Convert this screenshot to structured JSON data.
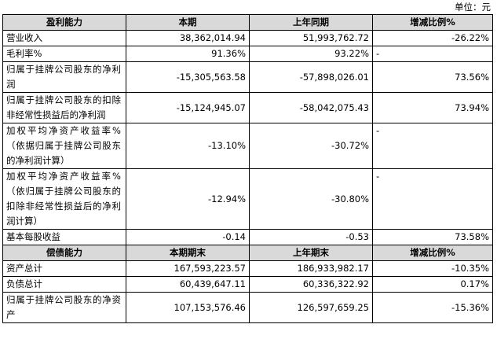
{
  "unit_label": "单位：元",
  "profit_section": {
    "headers": [
      "盈利能力",
      "本期",
      "上年同期",
      "增减比例%"
    ],
    "rows": [
      {
        "label": "营业收入",
        "current": "38,362,014.94",
        "previous": "51,993,762.72",
        "change": "-26.22%"
      },
      {
        "label": "毛利率%",
        "current": "91.36%",
        "previous": "93.22%",
        "change": "-"
      },
      {
        "label": "归属于挂牌公司股东的净利润",
        "current": "-15,305,563.58",
        "previous": "-57,898,026.01",
        "change": "73.56%"
      },
      {
        "label": "归属于挂牌公司股东的扣除非经常性损益后的净利润",
        "current": "-15,124,945.07",
        "previous": "-58,042,075.43",
        "change": "73.94%"
      },
      {
        "label": "加权平均净资产收益率%（依据归属于挂牌公司股东的净利润计算）",
        "current": "-13.10%",
        "previous": "-30.72%",
        "change": "-"
      },
      {
        "label": "加权平均净资产收益率%（依归属于挂牌公司股东的扣除非经常性损益后的净利润计算）",
        "current": "-12.94%",
        "previous": "-30.80%",
        "change": "-"
      },
      {
        "label": "基本每股收益",
        "current": "-0.14",
        "previous": "-0.53",
        "change": "73.58%"
      }
    ]
  },
  "solvency_section": {
    "headers": [
      "偿债能力",
      "本期期末",
      "上年期末",
      "增减比例%"
    ],
    "rows": [
      {
        "label": "资产总计",
        "current": "167,593,223.57",
        "previous": "186,933,982.17",
        "change": "-10.35%"
      },
      {
        "label": "负债总计",
        "current": "60,439,647.11",
        "previous": "60,336,322.92",
        "change": "0.17%"
      },
      {
        "label": "归属于挂牌公司股东的净资产",
        "current": "107,153,576.46",
        "previous": "126,597,659.25",
        "change": "-15.36%"
      }
    ]
  }
}
